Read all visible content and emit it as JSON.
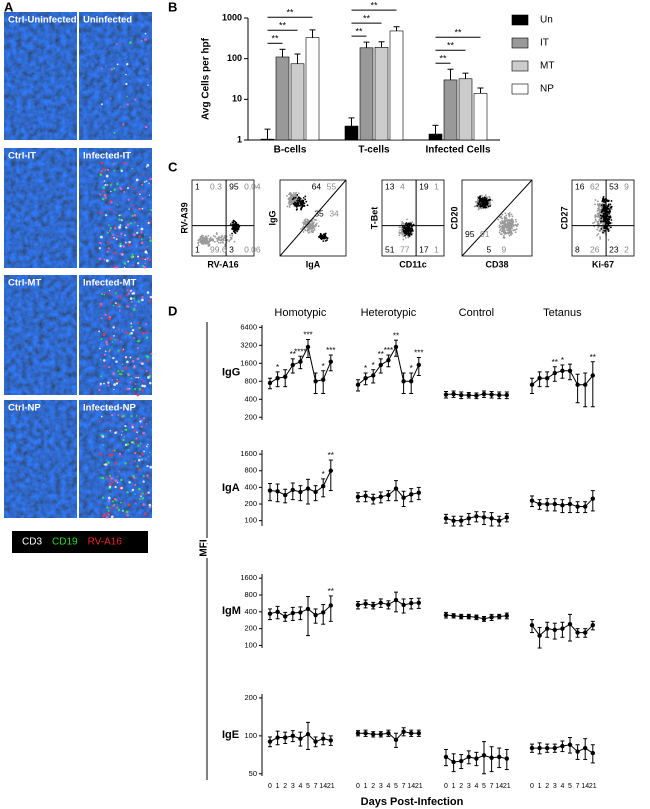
{
  "panel_labels": [
    "A",
    "B",
    "C",
    "D"
  ],
  "panel_a": {
    "images": [
      "Ctrl-Uninfected",
      "Uninfected",
      "Ctrl-IT",
      "Infected-IT",
      "Ctrl-MT",
      "Infected-MT",
      "Ctrl-NP",
      "Infected-NP"
    ],
    "stain_legend": [
      {
        "name": "CD3",
        "color": "#ffffff"
      },
      {
        "name": "CD19",
        "color": "#22dd22"
      },
      {
        "name": "RV-A16",
        "color": "#ee2222"
      }
    ]
  },
  "panel_c": {
    "plots": [
      {
        "x_label": "RV-A16",
        "y_label": "RV-A39",
        "gate": "quadrant",
        "regions": [
          [
            1,
            0.3
          ],
          [
            95,
            0.04
          ],
          [
            1,
            99.6
          ],
          [
            3,
            0.06
          ]
        ]
      },
      {
        "x_label": "IgA",
        "y_label": "IgG",
        "gate": "diagonal",
        "regions": [
          [
            64,
            55
          ],
          [
            35,
            34
          ]
        ]
      },
      {
        "x_label": "CD11c",
        "y_label": "T-Bet",
        "gate": "quadrant",
        "regions": [
          [
            13,
            4
          ],
          [
            19,
            1
          ],
          [
            51,
            77
          ],
          [
            17,
            1
          ]
        ]
      },
      {
        "x_label": "CD38",
        "y_label": "CD20",
        "gate": "diagonal",
        "regions": [
          [
            95,
            91
          ],
          [
            5,
            9
          ]
        ]
      },
      {
        "x_label": "Ki-67",
        "y_label": "CD27",
        "gate": "quadrant",
        "regions": [
          [
            16,
            62
          ],
          [
            53,
            9
          ],
          [
            8,
            26
          ],
          [
            23,
            2
          ]
        ]
      }
    ]
  },
  "chart_data": [
    {
      "type": "bar",
      "y_label": "Avg Cells per hpf",
      "log": true,
      "ylim": [
        1,
        1000
      ],
      "yticks": [
        1,
        10,
        100,
        1000
      ],
      "categories": [
        "B-cells",
        "T-cells",
        "Infected Cells"
      ],
      "series": [
        {
          "name": "Un",
          "color": "#000000",
          "values": [
            1.05,
            2.2,
            1.4
          ],
          "errors": [
            0.8,
            1.3,
            0.9
          ]
        },
        {
          "name": "IT",
          "color": "#999999",
          "values": [
            110,
            185,
            30
          ],
          "errors": [
            60,
            70,
            25
          ]
        },
        {
          "name": "MT",
          "color": "#cccccc",
          "values": [
            75,
            190,
            32
          ],
          "errors": [
            55,
            70,
            12
          ]
        },
        {
          "name": "NP",
          "color": "#ffffff",
          "values": [
            330,
            480,
            14
          ],
          "errors": [
            180,
            130,
            5
          ]
        }
      ],
      "significance": [
        [
          "**",
          "**",
          "**"
        ],
        [
          "**",
          "**",
          "**"
        ],
        [
          "**",
          "**",
          "**"
        ]
      ]
    },
    {
      "type": "line",
      "title": "IgG",
      "y_label": "MFI",
      "log": true,
      "ylim": [
        180,
        7000
      ],
      "yticks": [
        200,
        400,
        800,
        1600,
        3200,
        6400
      ],
      "series": [
        {
          "name": "Homotypic",
          "values": [
            750,
            900,
            950,
            1500,
            1700,
            3000,
            800,
            850,
            1700
          ],
          "errors": [
            150,
            250,
            300,
            400,
            400,
            1000,
            300,
            350,
            500
          ],
          "stars": [
            null,
            "*",
            null,
            "**",
            "****",
            "***",
            null,
            "*",
            "***"
          ]
        },
        {
          "name": "Heterotypic",
          "values": [
            700,
            900,
            1000,
            1500,
            1800,
            3000,
            800,
            800,
            1500
          ],
          "errors": [
            150,
            200,
            250,
            400,
            400,
            900,
            300,
            300,
            500
          ],
          "stars": [
            null,
            "*",
            "*",
            "**",
            "***",
            "**",
            null,
            "*",
            "***"
          ]
        },
        {
          "name": "Control",
          "values": [
            480,
            490,
            470,
            470,
            460,
            490,
            480,
            470,
            470
          ],
          "errors": [
            60,
            60,
            60,
            50,
            50,
            60,
            60,
            60,
            60
          ]
        },
        {
          "name": "Tetanus",
          "values": [
            700,
            900,
            900,
            1100,
            1200,
            1200,
            700,
            700,
            1000
          ],
          "errors": [
            200,
            250,
            250,
            300,
            300,
            350,
            350,
            400,
            700
          ],
          "stars": [
            null,
            null,
            null,
            "**",
            "*",
            null,
            null,
            null,
            "**"
          ]
        }
      ]
    },
    {
      "type": "line",
      "title": "IgA",
      "log": true,
      "ylim": [
        80,
        1900
      ],
      "yticks": [
        100,
        200,
        400,
        800,
        1600
      ],
      "series": [
        {
          "values": [
            350,
            340,
            290,
            360,
            330,
            380,
            330,
            420,
            800
          ],
          "errors": [
            120,
            120,
            80,
            120,
            100,
            180,
            100,
            150,
            450
          ],
          "stars": [
            null,
            null,
            null,
            null,
            null,
            null,
            null,
            "*",
            "**"
          ]
        },
        {
          "values": [
            270,
            280,
            250,
            270,
            290,
            380,
            260,
            300,
            320
          ],
          "errors": [
            50,
            60,
            50,
            60,
            60,
            150,
            80,
            80,
            80
          ]
        },
        {
          "values": [
            110,
            100,
            100,
            110,
            120,
            115,
            110,
            100,
            115
          ],
          "errors": [
            20,
            20,
            20,
            25,
            25,
            30,
            30,
            20,
            20
          ]
        },
        {
          "values": [
            230,
            200,
            200,
            200,
            190,
            200,
            180,
            180,
            250
          ],
          "errors": [
            50,
            40,
            50,
            50,
            50,
            60,
            40,
            40,
            100
          ]
        }
      ]
    },
    {
      "type": "line",
      "title": "IgM",
      "log": true,
      "ylim": [
        90,
        1900
      ],
      "yticks": [
        100,
        200,
        400,
        800,
        1600
      ],
      "series": [
        {
          "values": [
            370,
            400,
            330,
            380,
            390,
            450,
            350,
            390,
            520
          ],
          "errors": [
            80,
            100,
            60,
            100,
            100,
            300,
            100,
            150,
            250
          ],
          "stars": [
            null,
            null,
            null,
            null,
            null,
            null,
            null,
            null,
            "**"
          ]
        },
        {
          "values": [
            530,
            560,
            520,
            580,
            540,
            650,
            530,
            570,
            580
          ],
          "errors": [
            80,
            90,
            70,
            100,
            90,
            250,
            150,
            120,
            120
          ]
        },
        {
          "values": [
            350,
            340,
            330,
            330,
            320,
            300,
            320,
            330,
            340
          ],
          "errors": [
            40,
            30,
            30,
            30,
            30,
            30,
            40,
            30,
            40
          ]
        },
        {
          "values": [
            230,
            150,
            200,
            190,
            200,
            240,
            170,
            170,
            230
          ],
          "errors": [
            60,
            60,
            60,
            60,
            60,
            120,
            30,
            30,
            40
          ]
        }
      ]
    },
    {
      "type": "line",
      "title": "IgE",
      "x_label": "Days Post-Infection",
      "log": true,
      "ylim": [
        48,
        215
      ],
      "yticks": [
        50,
        100,
        200
      ],
      "categories": [
        "0",
        "1",
        "2",
        "3",
        "4",
        "5",
        "7",
        "14",
        "21"
      ],
      "series": [
        {
          "values": [
            90,
            97,
            97,
            100,
            95,
            103,
            90,
            95,
            92
          ],
          "errors": [
            8,
            12,
            10,
            10,
            12,
            25,
            8,
            10,
            8
          ]
        },
        {
          "values": [
            105,
            105,
            103,
            103,
            105,
            93,
            108,
            105,
            105
          ],
          "errors": [
            5,
            6,
            5,
            5,
            6,
            12,
            8,
            6,
            6
          ]
        },
        {
          "values": [
            68,
            62,
            63,
            68,
            66,
            70,
            67,
            68,
            66
          ],
          "errors": [
            10,
            10,
            8,
            8,
            8,
            20,
            15,
            12,
            12
          ]
        },
        {
          "values": [
            80,
            80,
            80,
            80,
            83,
            85,
            75,
            80,
            73
          ],
          "errors": [
            6,
            8,
            6,
            6,
            8,
            12,
            10,
            15,
            12
          ]
        }
      ]
    }
  ]
}
